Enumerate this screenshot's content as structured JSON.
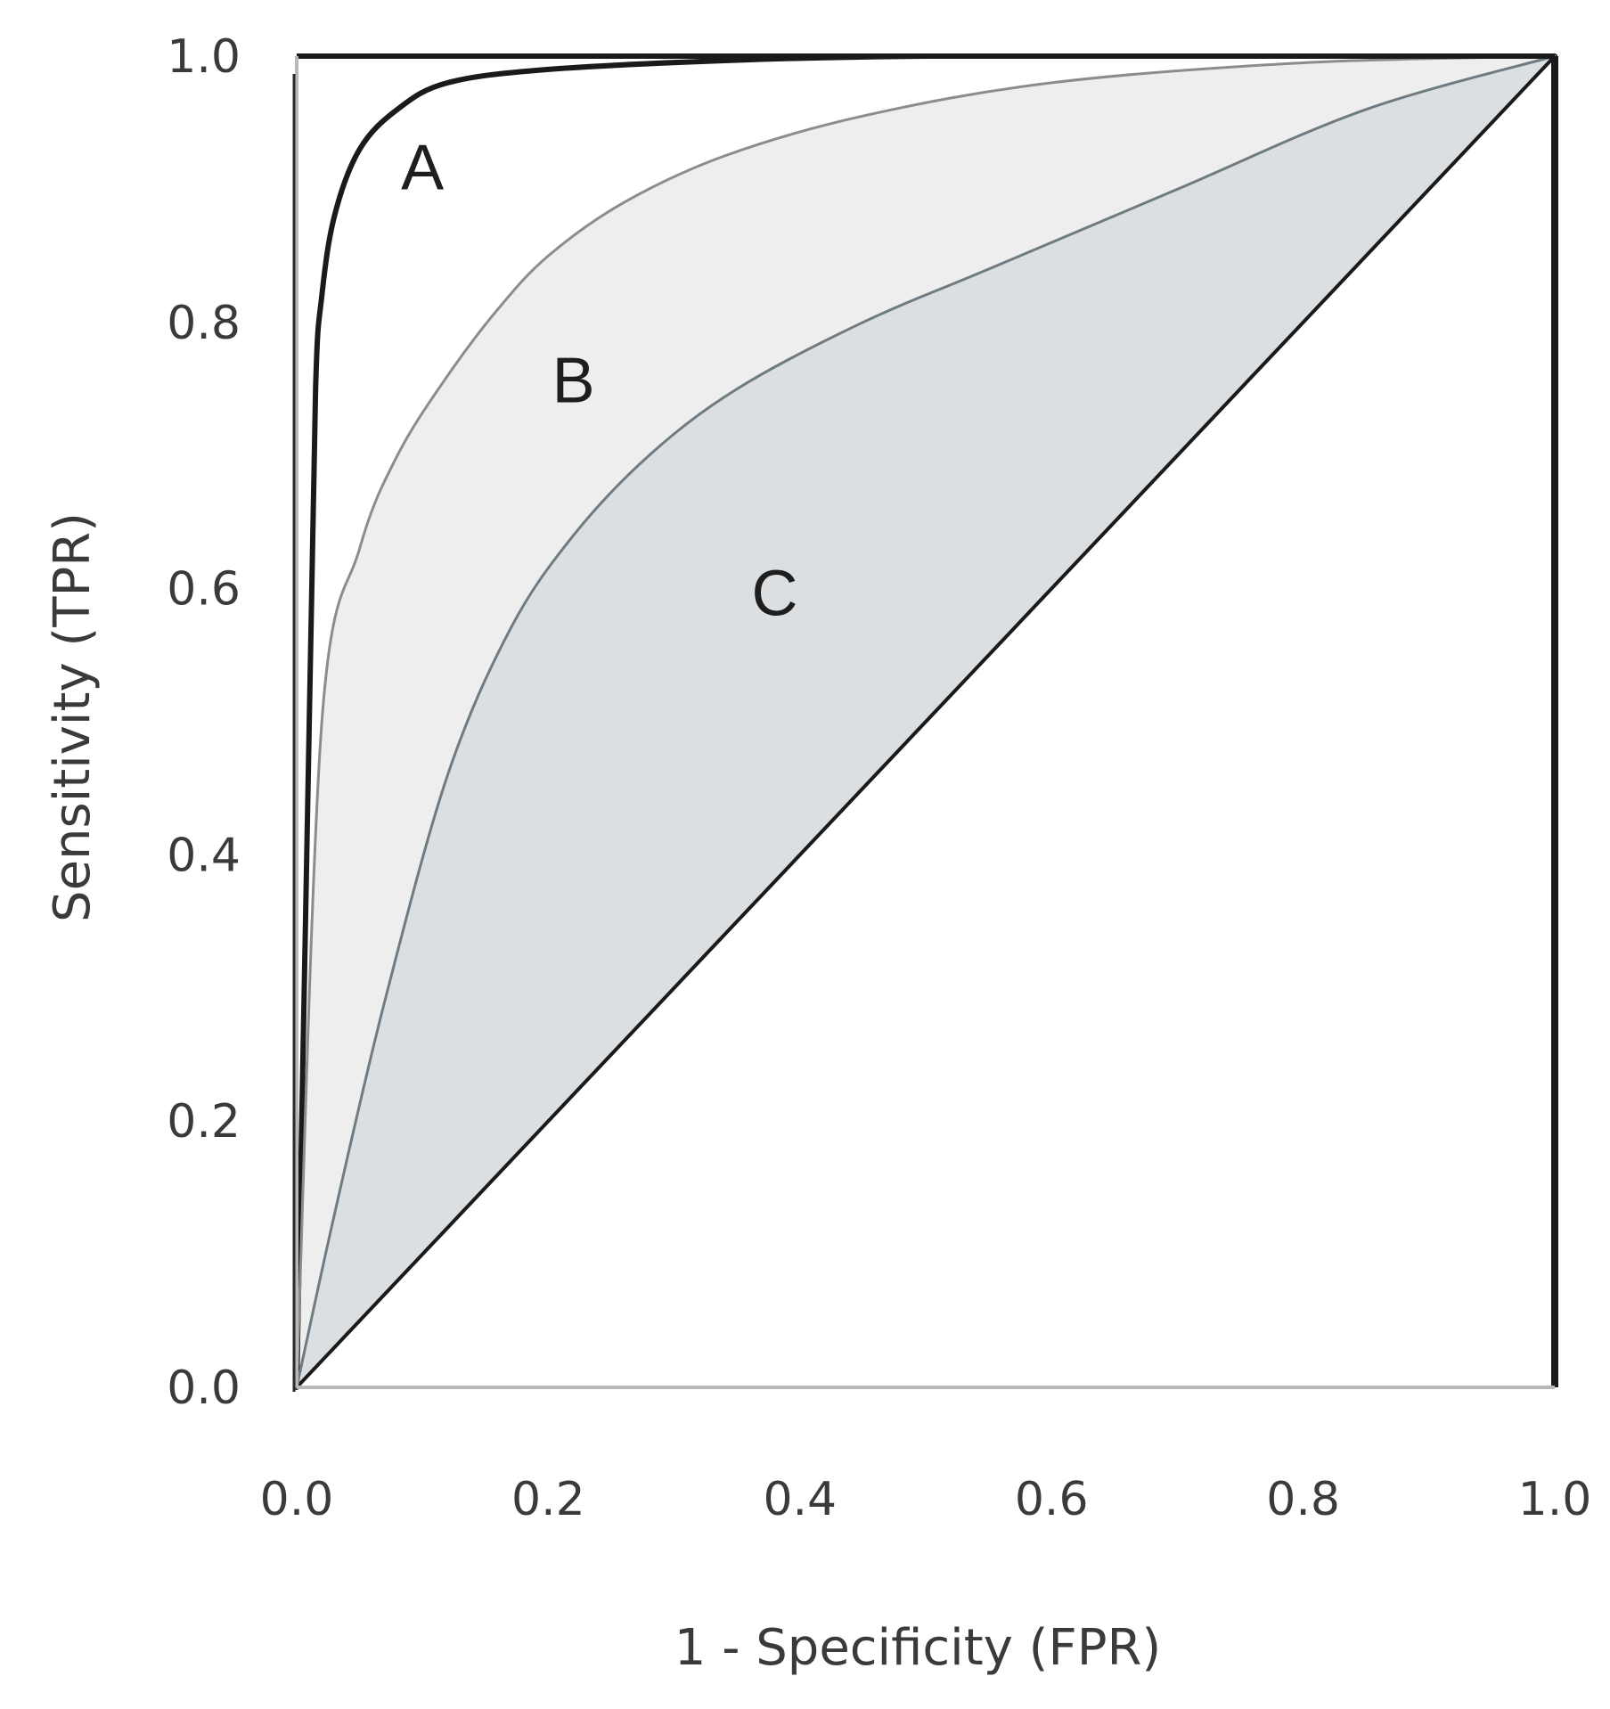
{
  "chart_data": {
    "type": "area",
    "xlabel": "1 - Specificity (FPR)",
    "ylabel": "Sensitivity (TPR)",
    "xlim": [
      0,
      1
    ],
    "ylim": [
      0,
      1
    ],
    "xticks": [
      "0.0",
      "0.2",
      "0.4",
      "0.6",
      "0.8",
      "1.0"
    ],
    "yticks": [
      "0.0",
      "0.2",
      "0.4",
      "0.6",
      "0.8",
      "1.0"
    ],
    "grid": false,
    "series": [
      {
        "name": "A",
        "fill": "none",
        "stroke": "#1a1a1a",
        "x": [
          0.0,
          0.01,
          0.015,
          0.02,
          0.03,
          0.05,
          0.08,
          0.12,
          0.2,
          0.35,
          0.5,
          0.7,
          1.0
        ],
        "y": [
          0.0,
          0.5,
          0.75,
          0.82,
          0.88,
          0.93,
          0.96,
          0.98,
          0.99,
          0.997,
          1.0,
          1.0,
          1.0
        ]
      },
      {
        "name": "B",
        "fill": "#eeeeee",
        "stroke": "#8c8c8c",
        "x": [
          0.0,
          0.02,
          0.05,
          0.08,
          0.12,
          0.16,
          0.2,
          0.26,
          0.34,
          0.45,
          0.6,
          0.8,
          1.0
        ],
        "y": [
          0.0,
          0.5,
          0.63,
          0.7,
          0.76,
          0.81,
          0.85,
          0.89,
          0.925,
          0.955,
          0.98,
          0.995,
          1.0
        ]
      },
      {
        "name": "C",
        "fill": "#dcdfe1",
        "stroke": "#6e7c82",
        "x": [
          0.0,
          0.03,
          0.07,
          0.12,
          0.17,
          0.22,
          0.28,
          0.35,
          0.45,
          0.55,
          0.7,
          0.85,
          1.0
        ],
        "y": [
          0.0,
          0.13,
          0.29,
          0.46,
          0.57,
          0.64,
          0.7,
          0.75,
          0.8,
          0.84,
          0.9,
          0.96,
          1.0
        ]
      }
    ],
    "reference_line": {
      "x": [
        0,
        1
      ],
      "y": [
        0,
        1
      ],
      "stroke": "#1a1a1a"
    },
    "annotations": [
      {
        "text": "A",
        "x": 0.1,
        "y": 0.9
      },
      {
        "text": "B",
        "x": 0.22,
        "y": 0.74
      },
      {
        "text": "C",
        "x": 0.38,
        "y": 0.58
      }
    ]
  }
}
